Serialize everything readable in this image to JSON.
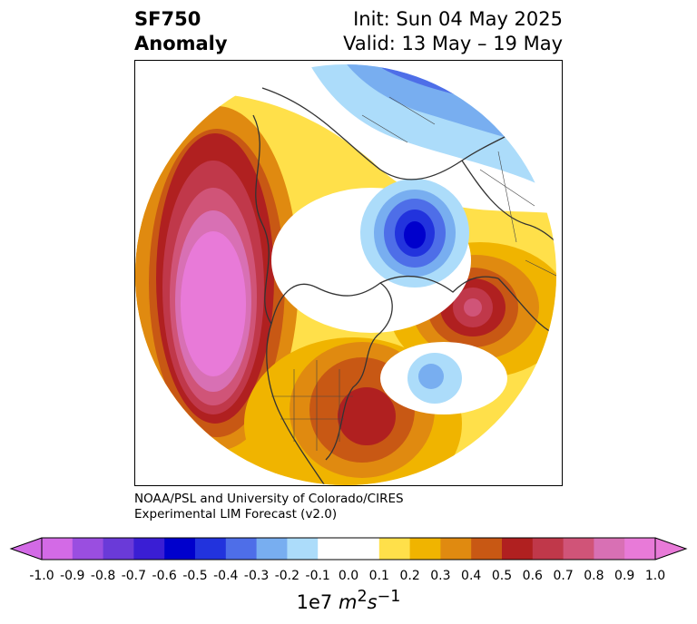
{
  "title": {
    "variable": "SF750",
    "kind": "Anomaly",
    "init": "Init: Sun 04 May 2025",
    "valid": "Valid: 13 May – 19 May"
  },
  "credit": {
    "line1": "NOAA/PSL and University of Colorado/CIRES",
    "line2": "Experimental LIM Forecast (v2.0)"
  },
  "colorbar": {
    "units_prefix": "1e7 ",
    "units_italic": "m",
    "units_sup1": "2",
    "units_mid": "s",
    "units_sup2": "−1",
    "ticks": [
      "-1.0",
      "-0.9",
      "-0.8",
      "-0.7",
      "-0.6",
      "-0.5",
      "-0.4",
      "-0.3",
      "-0.2",
      "-0.1",
      "0.0",
      "0.1",
      "0.2",
      "0.3",
      "0.4",
      "0.5",
      "0.6",
      "0.7",
      "0.8",
      "0.9",
      "1.0"
    ],
    "colors": [
      "#d36ae6",
      "#9a4ee0",
      "#6a3ad8",
      "#3a1ed4",
      "#0000cc",
      "#2233dd",
      "#4e6ee8",
      "#78aef0",
      "#acdcfa",
      "#ffffff",
      "#ffffff",
      "#ffe04a",
      "#f0b400",
      "#e08a10",
      "#c85814",
      "#b02020",
      "#c0384a",
      "#d05478",
      "#d870b4",
      "#e87ad8"
    ],
    "under_color": "#d36ae6",
    "over_color": "#e87ad8"
  },
  "map": {
    "projection": "north-polar-stereographic",
    "field": "750 hPa streamfunction anomaly",
    "features": [
      {
        "name": "north-pacific-positive",
        "level": 1.0
      },
      {
        "name": "siberia-negative",
        "level": -0.6
      },
      {
        "name": "north-atlantic-positive",
        "level": 0.7
      },
      {
        "name": "eastern-us-positive",
        "level": 0.6
      },
      {
        "name": "arctic-negative",
        "level": -0.5
      },
      {
        "name": "atlantic-small-negative",
        "level": -0.3
      }
    ]
  }
}
